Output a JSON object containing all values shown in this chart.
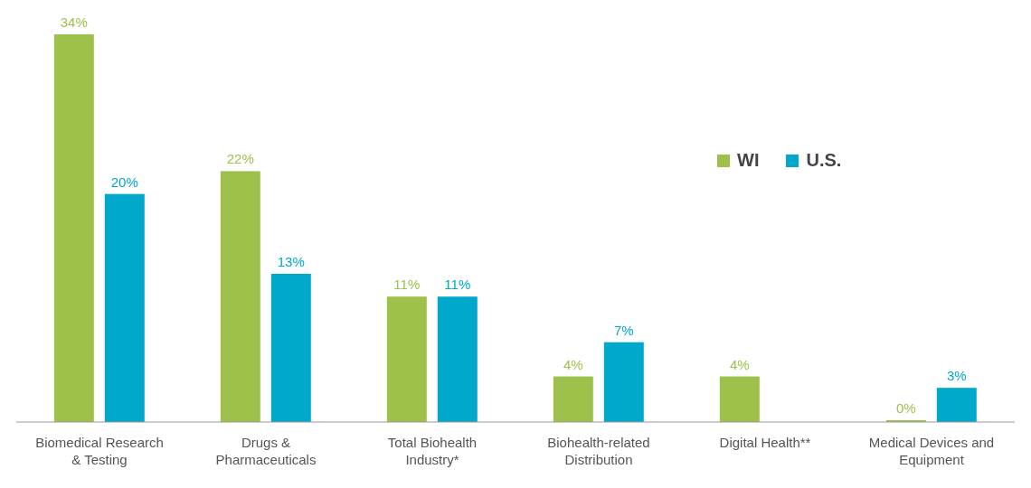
{
  "chart_data": {
    "type": "bar",
    "categories": [
      "Biomedical Research & Testing",
      "Drugs & Pharmaceuticals",
      "Total Biohealth Industry*",
      "Biohealth-related Distribution",
      "Digital Health**",
      "Medical Devices and Equipment"
    ],
    "series": [
      {
        "name": "WI",
        "color": "#9dc14b",
        "values": [
          34,
          22,
          11,
          4,
          4,
          0
        ],
        "value_labels": [
          "34%",
          "22%",
          "11%",
          "4%",
          "4%",
          "0%"
        ]
      },
      {
        "name": "U.S.",
        "color": "#00a8cc",
        "values": [
          20,
          13,
          11,
          7,
          null,
          3
        ],
        "value_labels": [
          "20%",
          "13%",
          "11%",
          "7%",
          null,
          "3%"
        ]
      }
    ],
    "legend": "top right",
    "grid": false
  }
}
